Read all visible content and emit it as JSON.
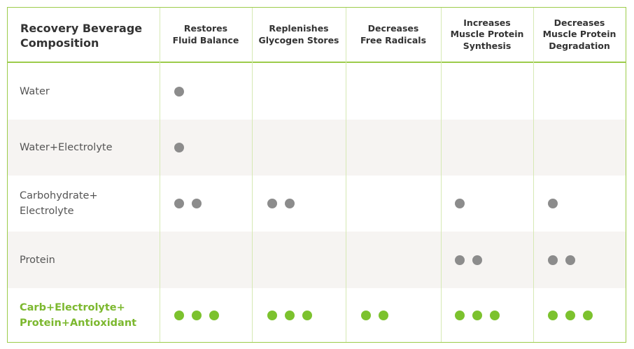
{
  "table": {
    "corner_title": "Recovery Beverage\nComposition",
    "columns": [
      "Restores\nFluid Balance",
      "Replenishes\nGlycogen Stores",
      "Decreases\nFree Radicals",
      "Increases\nMuscle Protein\nSynthesis",
      "Decreases\nMuscle Protein\nDegradation"
    ],
    "rows": [
      {
        "label": "Water",
        "ratings": [
          1,
          0,
          0,
          0,
          0
        ],
        "highlight": false
      },
      {
        "label": "Water+Electrolyte",
        "ratings": [
          1,
          0,
          0,
          0,
          0
        ],
        "highlight": false
      },
      {
        "label": "Carbohydrate+\nElectrolyte",
        "ratings": [
          2,
          2,
          0,
          1,
          1
        ],
        "highlight": false
      },
      {
        "label": "Protein",
        "ratings": [
          0,
          0,
          0,
          2,
          2
        ],
        "highlight": false
      },
      {
        "label": "Carb+Electrolyte+\nProtein+Antioxidant",
        "ratings": [
          3,
          3,
          2,
          3,
          3
        ],
        "highlight": true
      }
    ]
  },
  "colors": {
    "border_green": "#9ccc4a",
    "dot_grey": "#8c8c8c",
    "dot_green": "#7cc22e",
    "row_shade": "#f6f4f2",
    "highlight_text": "#7cb82f"
  }
}
